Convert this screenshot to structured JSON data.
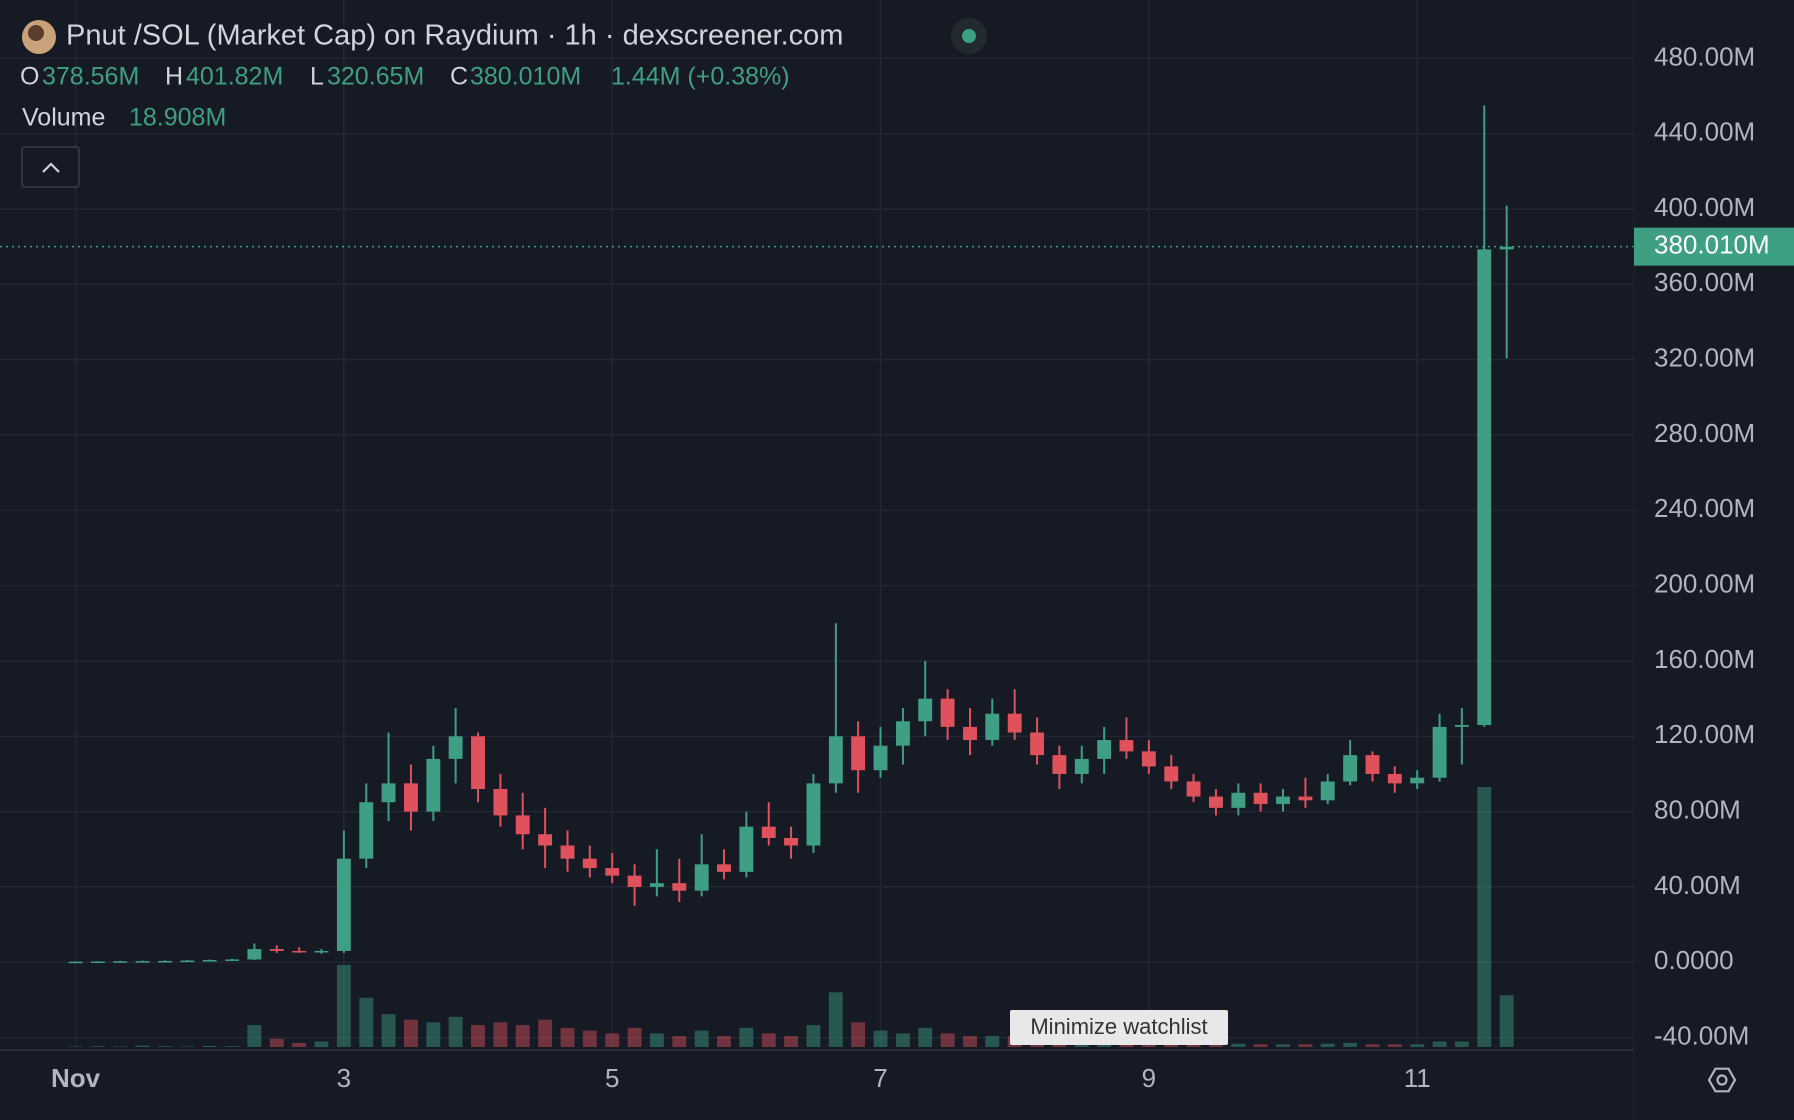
{
  "chart_data": {
    "type": "candlestick",
    "title": "Pnut /SOL (Market Cap) on Raydium · 1h · dexscreener.com",
    "header": {
      "o": "O",
      "o_value": "378.56M",
      "h": "H",
      "h_value": "401.82M",
      "l": "L",
      "l_value": "320.65M",
      "c": "C",
      "c_value": "380.010M",
      "change": "1.44M (+0.38%)",
      "volume": "Volume",
      "volume_value": "18.908M"
    },
    "tooltip": "Minimize watchlist",
    "up_color": "#3f9f85",
    "down_color": "#e0525b",
    "grid": true,
    "x": [
      1,
      1.167,
      1.333,
      1.5,
      1.667,
      1.833,
      2,
      2.167,
      2.333,
      2.5,
      2.667,
      2.833,
      3,
      3.167,
      3.333,
      3.5,
      3.667,
      3.833,
      4,
      4.167,
      4.333,
      4.5,
      4.667,
      4.833,
      5,
      5.167,
      5.333,
      5.5,
      5.667,
      5.833,
      6,
      6.167,
      6.333,
      6.5,
      6.667,
      6.833,
      7,
      7.167,
      7.333,
      7.5,
      7.667,
      7.833,
      8,
      8.167,
      8.333,
      8.5,
      8.667,
      8.833,
      9,
      9.167,
      9.333,
      9.5,
      9.667,
      9.833,
      10,
      10.167,
      10.333,
      10.5,
      10.667,
      10.833,
      11,
      11.167,
      11.333,
      11.5,
      11.667
    ],
    "open": [
      0.2,
      0.3,
      0.4,
      0.5,
      0.6,
      0.7,
      0.9,
      1.2,
      1.5,
      7,
      6,
      5.5,
      6,
      55,
      85,
      95,
      80,
      108,
      120,
      92,
      78,
      68,
      62,
      55,
      50,
      46,
      40,
      42,
      38,
      52,
      48,
      72,
      66,
      62,
      95,
      120,
      102,
      115,
      128,
      140,
      125,
      118,
      132,
      122,
      110,
      100,
      108,
      118,
      112,
      104,
      96,
      88,
      82,
      90,
      84,
      88,
      86,
      96,
      110,
      100,
      95,
      98,
      125,
      126,
      378.56
    ],
    "high": [
      0.5,
      0.6,
      0.8,
      0.9,
      1,
      1.2,
      1.5,
      1.8,
      10,
      9,
      8,
      7,
      70,
      95,
      122,
      105,
      115,
      135,
      122,
      100,
      90,
      82,
      70,
      62,
      58,
      52,
      60,
      55,
      68,
      60,
      80,
      85,
      72,
      100,
      180,
      128,
      125,
      135,
      160,
      145,
      135,
      140,
      145,
      130,
      115,
      115,
      125,
      130,
      118,
      110,
      100,
      92,
      95,
      95,
      92,
      98,
      100,
      118,
      112,
      104,
      102,
      132,
      135,
      455,
      401.82
    ],
    "low": [
      0.1,
      0.2,
      0.3,
      0.3,
      0.4,
      0.5,
      0.7,
      0.9,
      1.2,
      5,
      5,
      4.5,
      5,
      50,
      75,
      70,
      75,
      95,
      85,
      72,
      60,
      50,
      48,
      45,
      42,
      30,
      35,
      32,
      35,
      44,
      45,
      62,
      55,
      58,
      90,
      90,
      98,
      105,
      120,
      118,
      110,
      115,
      118,
      105,
      92,
      95,
      100,
      108,
      100,
      92,
      85,
      78,
      78,
      80,
      80,
      82,
      84,
      94,
      96,
      90,
      92,
      96,
      105,
      125,
      320.65
    ],
    "close": [
      0.3,
      0.4,
      0.5,
      0.6,
      0.7,
      0.9,
      1.2,
      1.5,
      7,
      6,
      5.5,
      6,
      55,
      85,
      95,
      80,
      108,
      120,
      92,
      78,
      68,
      62,
      55,
      50,
      46,
      40,
      42,
      38,
      52,
      48,
      72,
      66,
      62,
      95,
      120,
      102,
      115,
      128,
      140,
      125,
      118,
      132,
      122,
      110,
      100,
      108,
      118,
      112,
      104,
      96,
      88,
      82,
      90,
      84,
      88,
      86,
      96,
      110,
      100,
      95,
      98,
      125,
      126,
      378.56,
      380.01
    ],
    "volume": [
      0.2,
      0.3,
      0.2,
      0.5,
      0.3,
      0.2,
      0.4,
      0.3,
      8,
      3,
      1.5,
      2,
      30,
      18,
      12,
      10,
      9,
      11,
      8,
      9,
      8,
      10,
      7,
      6,
      5,
      7,
      5,
      4,
      6,
      4,
      7,
      5,
      4,
      8,
      20,
      9,
      6,
      5,
      7,
      5,
      4,
      4,
      4,
      3,
      3,
      2,
      3,
      2,
      2,
      1.5,
      1.5,
      1.2,
      1.2,
      1,
      1,
      1,
      1.2,
      1.5,
      1,
      1,
      1,
      2,
      2,
      95,
      18.908
    ],
    "last_price": {
      "value": 380.01,
      "label": "380.010M"
    },
    "xlim": [
      0.437,
      12.616
    ],
    "xticks": [
      {
        "value": 1,
        "label": "Nov"
      },
      3,
      5,
      7,
      9,
      11
    ],
    "ylim": [
      -45,
      511
    ],
    "yticks": [
      {
        "value": -40,
        "label": "-40.00M"
      },
      {
        "value": 0,
        "label": "0.0000"
      },
      {
        "value": 40,
        "label": "40.00M"
      },
      {
        "value": 80,
        "label": "80.00M"
      },
      {
        "value": 120,
        "label": "120.00M"
      },
      {
        "value": 160,
        "label": "160.00M"
      },
      {
        "value": 200,
        "label": "200.00M"
      },
      {
        "value": 240,
        "label": "240.00M"
      },
      {
        "value": 280,
        "label": "280.00M"
      },
      {
        "value": 320,
        "label": "320.00M"
      },
      {
        "value": 360,
        "label": "360.00M"
      },
      {
        "value": 400,
        "label": "400.00M"
      },
      {
        "value": 440,
        "label": "440.00M"
      },
      {
        "value": 480,
        "label": "480.00M"
      }
    ]
  }
}
